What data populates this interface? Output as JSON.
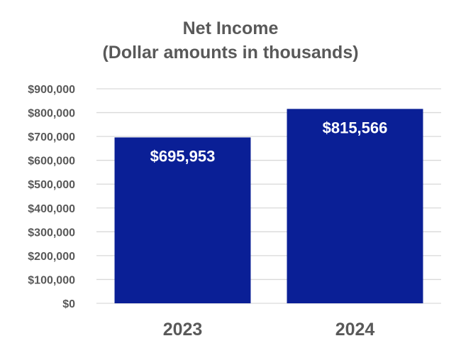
{
  "chart_data": {
    "type": "bar",
    "title": [
      "Net Income",
      "(Dollar amounts in thousands)"
    ],
    "categories": [
      "2023",
      "2024"
    ],
    "values": [
      695953,
      815566
    ],
    "data_labels": [
      "$695,953",
      "$815,566"
    ],
    "ylim": [
      0,
      900000
    ],
    "yticks": [
      0,
      100000,
      200000,
      300000,
      400000,
      500000,
      600000,
      700000,
      800000,
      900000
    ],
    "ytick_labels": [
      "$0",
      "$100,000",
      "$200,000",
      "$300,000",
      "$400,000",
      "$500,000",
      "$600,000",
      "$700,000",
      "$800,000",
      "$900,000"
    ],
    "xlabel": "",
    "ylabel": "",
    "grid": true,
    "legend": "none",
    "bar_color": "#0A1F96",
    "grid_color": "#D9D9D9",
    "text_color": "#595959"
  }
}
